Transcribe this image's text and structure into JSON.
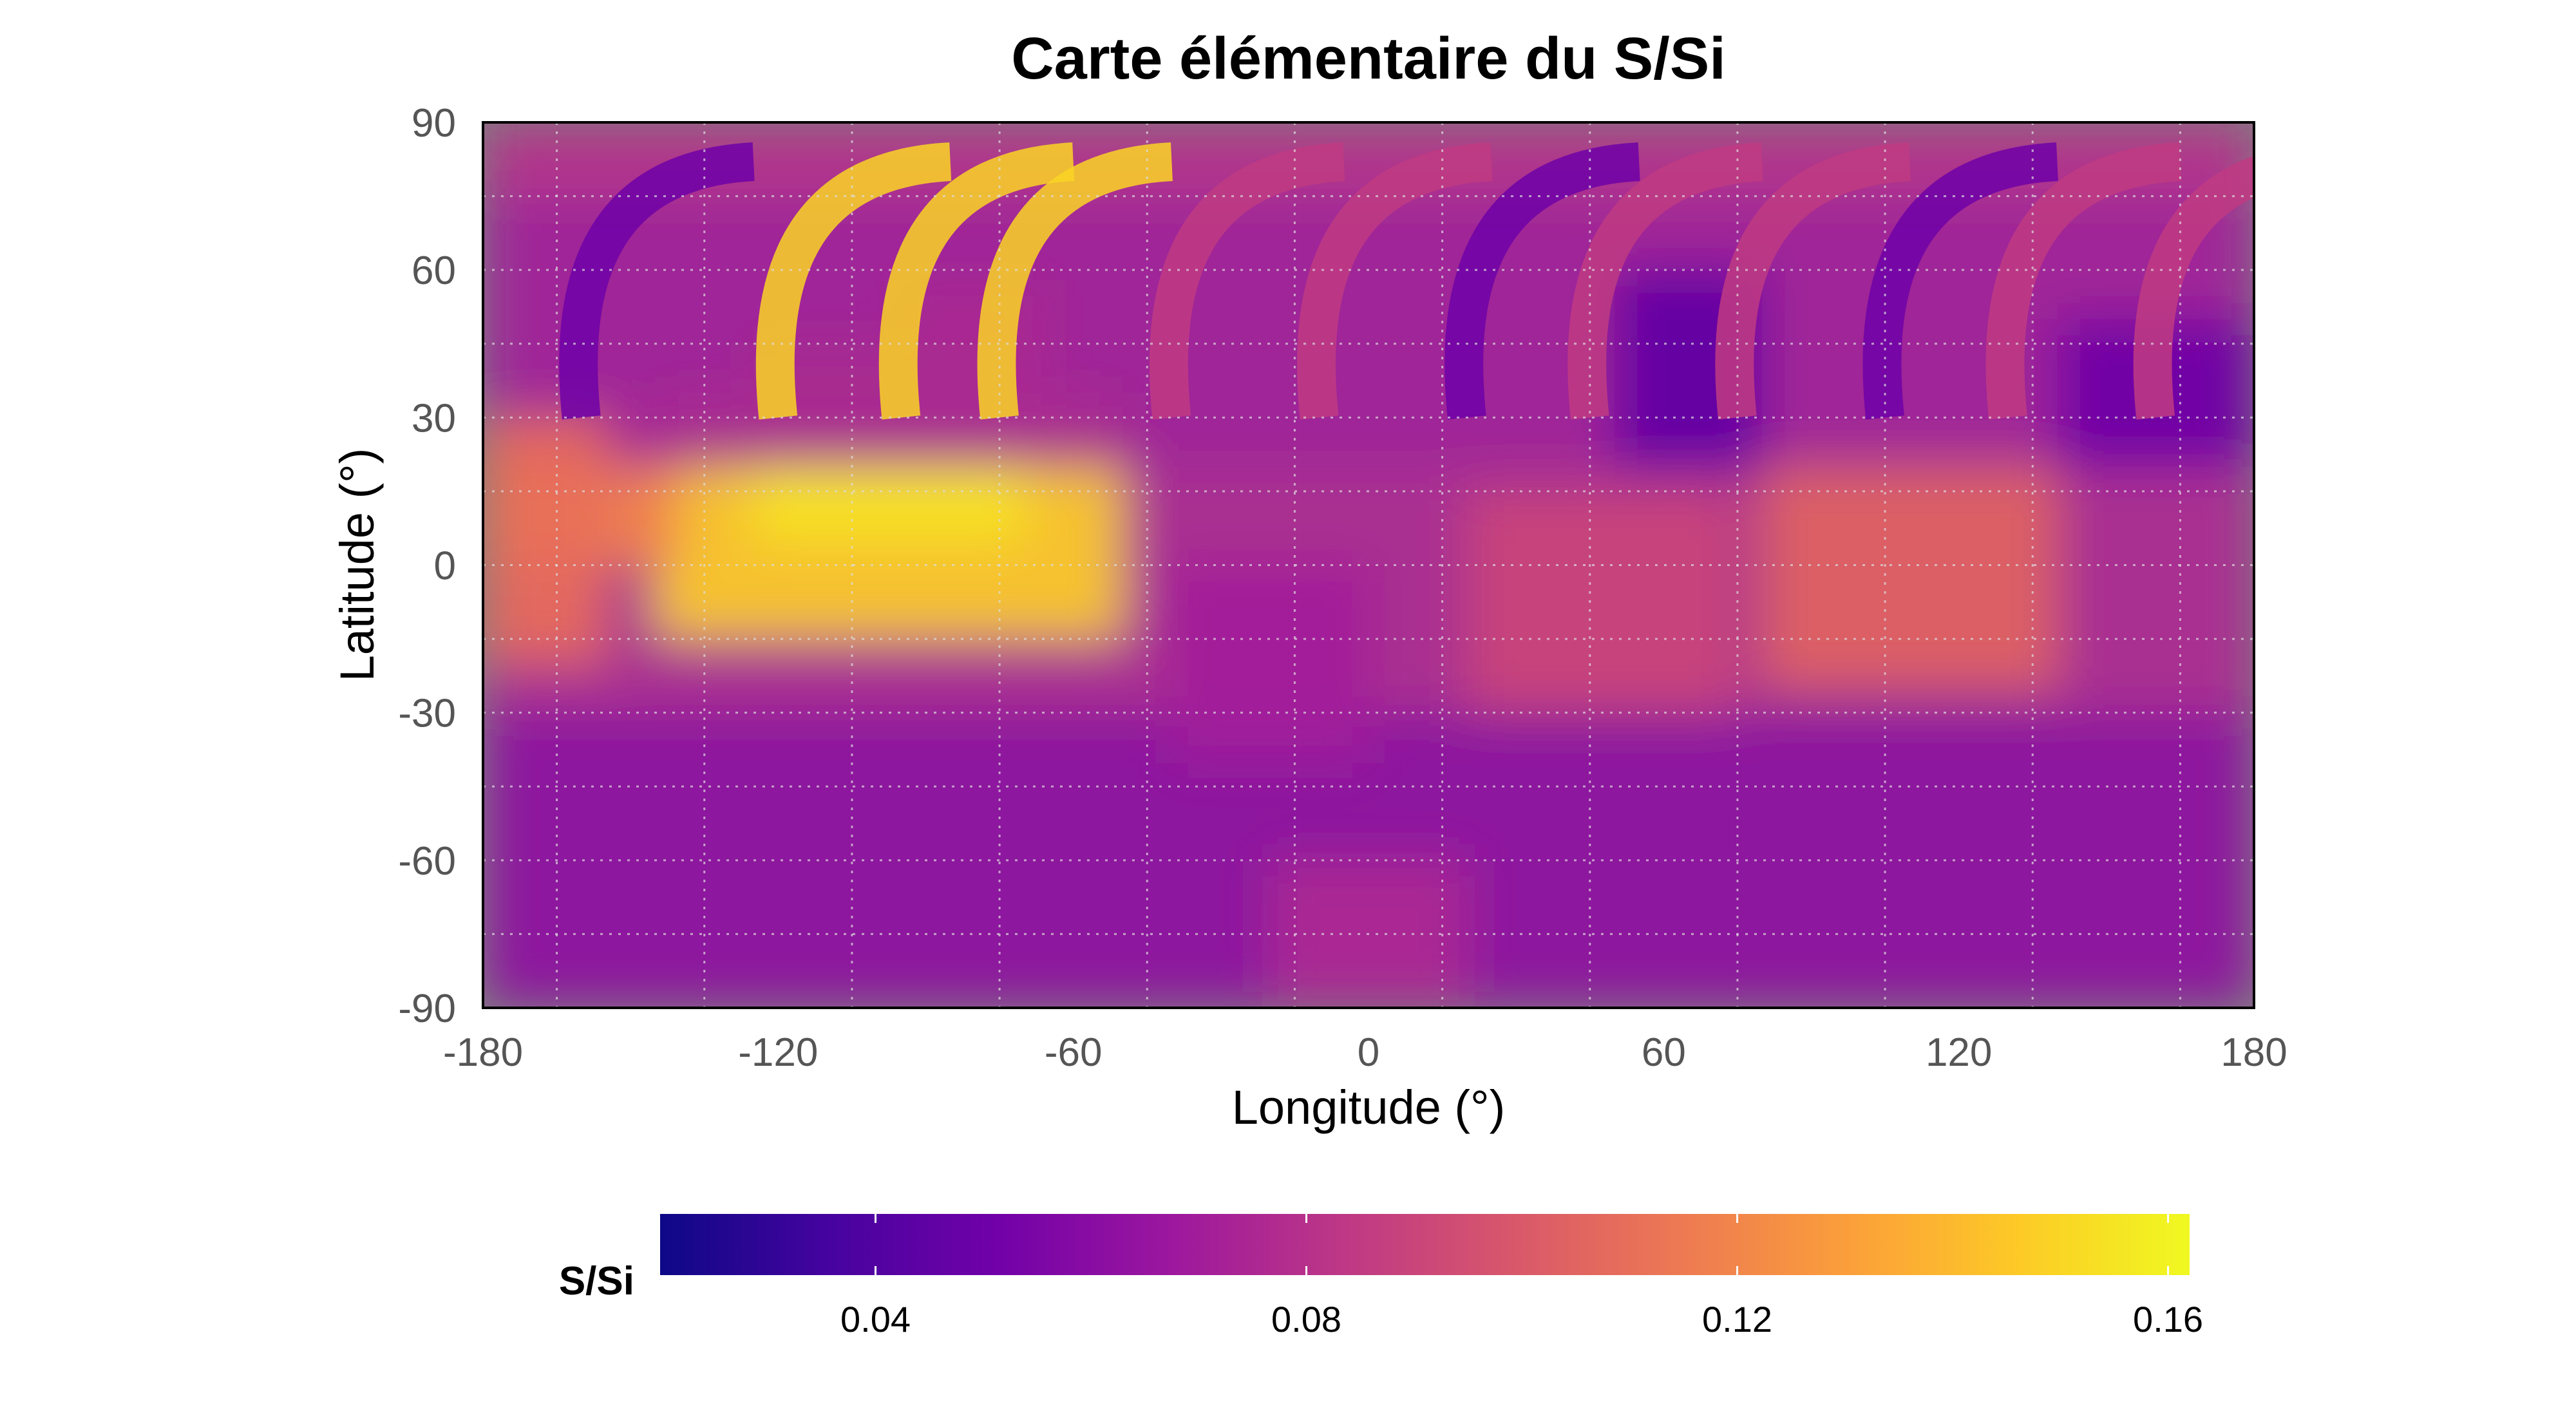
{
  "chart_data": {
    "type": "heatmap",
    "title": "Carte élémentaire du S/Si",
    "xlabel": "Longitude (°)",
    "ylabel": "Latitude (°)",
    "xlim": [
      -180,
      180
    ],
    "ylim": [
      -90,
      90
    ],
    "xticks": [
      "-180",
      "-120",
      "-60",
      "0",
      "60",
      "120",
      "180"
    ],
    "yticks": [
      "90",
      "60",
      "30",
      "0",
      "-30",
      "-60",
      "-90"
    ],
    "grid": true,
    "no_data_color": "#808080",
    "colorbar": {
      "label": "S/Si",
      "range": [
        0.02,
        0.162
      ],
      "ticks": [
        "0.04",
        "0.08",
        "0.12",
        "0.16"
      ],
      "colormap": "plasma",
      "colors": [
        "#0d0887",
        "#46039f",
        "#7201a8",
        "#9c179e",
        "#bd3786",
        "#d8576b",
        "#ed7953",
        "#fb9f3a",
        "#fdca26",
        "#f0f921"
      ]
    },
    "regions": [
      {
        "lon": [
          -180,
          180
        ],
        "lat": [
          -90,
          -30
        ],
        "value": 0.062
      },
      {
        "lon": [
          -180,
          180
        ],
        "lat": [
          -30,
          20
        ],
        "value": 0.075
      },
      {
        "lon": [
          -145,
          -50
        ],
        "lat": [
          -15,
          35
        ],
        "value": 0.148
      },
      {
        "lon": [
          -125,
          -70
        ],
        "lat": [
          5,
          45
        ],
        "value": 0.155
      },
      {
        "lon": [
          -95,
          -65
        ],
        "lat": [
          30,
          58
        ],
        "value": 0.14
      },
      {
        "lon": [
          -180,
          -140
        ],
        "lat": [
          0,
          30
        ],
        "value": 0.12
      },
      {
        "lon": [
          80,
          140
        ],
        "lat": [
          -25,
          20
        ],
        "value": 0.105
      },
      {
        "lon": [
          20,
          75
        ],
        "lat": [
          -30,
          15
        ],
        "value": 0.09
      },
      {
        "lon": [
          -40,
          0
        ],
        "lat": [
          -40,
          0
        ],
        "value": 0.07
      },
      {
        "lon": [
          -180,
          180
        ],
        "lat": [
          20,
          75
        ],
        "value": 0.07
      },
      {
        "lon": [
          -180,
          180
        ],
        "lat": [
          75,
          90
        ],
        "value": 0.08
      },
      {
        "lon": [
          50,
          80
        ],
        "lat": [
          20,
          60
        ],
        "value": 0.045
      },
      {
        "lon": [
          -180,
          -155
        ],
        "lat": [
          -20,
          30
        ],
        "value": 0.11
      },
      {
        "lon": [
          140,
          180
        ],
        "lat": [
          20,
          50
        ],
        "value": 0.05
      },
      {
        "lon": [
          -20,
          20
        ],
        "lat": [
          -90,
          -60
        ],
        "value": 0.075
      }
    ]
  }
}
